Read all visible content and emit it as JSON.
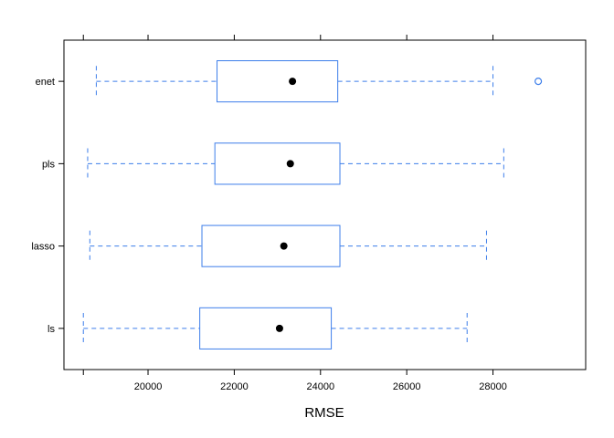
{
  "chart_data": {
    "type": "boxplot",
    "orientation": "horizontal",
    "xlabel": "RMSE",
    "xlim": [
      18050,
      30150
    ],
    "xticks": [
      20000,
      22000,
      24000,
      26000,
      28000
    ],
    "xtick_labels": [
      "20000",
      "22000",
      "24000",
      "26000",
      "28000"
    ],
    "grid": false,
    "colors": {
      "box": "#3d7eea",
      "median": "#000000",
      "outlier": "#3d7eea",
      "frame": "#000000"
    },
    "categories": [
      "ls",
      "lasso",
      "pls",
      "enet"
    ],
    "series": [
      {
        "label": "ls",
        "whisker_low": 18500,
        "q1": 21200,
        "median": 23050,
        "q3": 24250,
        "whisker_high": 27400,
        "outliers": []
      },
      {
        "label": "lasso",
        "whisker_low": 18650,
        "q1": 21250,
        "median": 23150,
        "q3": 24450,
        "whisker_high": 27850,
        "outliers": []
      },
      {
        "label": "pls",
        "whisker_low": 18600,
        "q1": 21550,
        "median": 23300,
        "q3": 24450,
        "whisker_high": 28250,
        "outliers": []
      },
      {
        "label": "enet",
        "whisker_low": 18800,
        "q1": 21600,
        "median": 23350,
        "q3": 24400,
        "whisker_high": 28000,
        "outliers": [
          29050
        ]
      }
    ]
  }
}
